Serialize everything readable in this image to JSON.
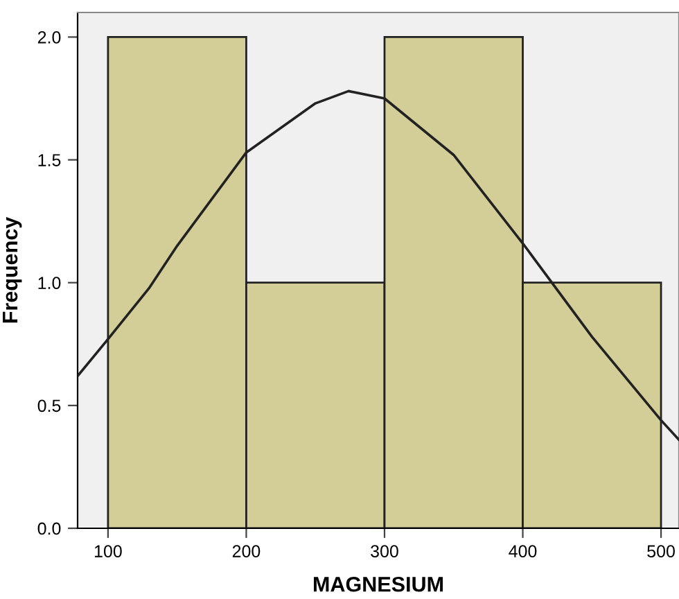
{
  "chart_data": {
    "type": "histogram",
    "xlabel": "MAGNESIUM",
    "ylabel": "Frequency",
    "bins": [
      100,
      200,
      300,
      400,
      500
    ],
    "values": [
      2,
      1,
      2,
      1
    ],
    "color": "#d3ce97",
    "series": [
      {
        "type": "line",
        "color": "#222222",
        "x": [
          78,
          100,
          130,
          150,
          200,
          250,
          274,
          300,
          350,
          400,
          450,
          500,
          513
        ],
        "values": [
          0.62,
          0.77,
          0.98,
          1.15,
          1.53,
          1.73,
          1.78,
          1.75,
          1.52,
          1.16,
          0.78,
          0.44,
          0.36
        ]
      }
    ],
    "xlim": [
      78,
      513
    ],
    "ylim": [
      0,
      2.1
    ],
    "xticks": [
      100,
      200,
      300,
      400,
      500
    ],
    "yticks": [
      {
        "value": 0,
        "label": "0.0"
      },
      {
        "value": 0.5,
        "label": "0.5"
      },
      {
        "value": 1,
        "label": "1.0"
      },
      {
        "value": 1.5,
        "label": "1.5"
      },
      {
        "value": 2,
        "label": "2.0"
      }
    ],
    "grid": false,
    "legend": false
  }
}
